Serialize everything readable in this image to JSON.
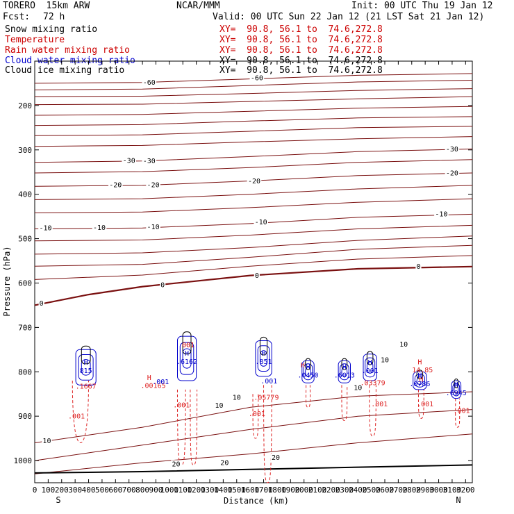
{
  "header": {
    "model": "TORERO  15km ARW",
    "center": "NCAR/MMM",
    "init": "Init: 00 UTC Thu 19 Jan 12",
    "fcst_label": "Fcst:",
    "fcst_value": "72 h",
    "valid": "Valid: 00 UTC Sun 22 Jan 12 (21 LST Sat 21 Jan 12)"
  },
  "fields": [
    {
      "name": "Snow mixing ratio",
      "xy": "XY=  90.8, 56.1 to  74.6,272.8",
      "color": "#000000",
      "xy_color": "#cc0000"
    },
    {
      "name": "Temperature",
      "xy": "XY=  90.8, 56.1 to  74.6,272.8",
      "color": "#cc0000",
      "xy_color": "#cc0000"
    },
    {
      "name": "Rain water mixing ratio",
      "xy": "XY=  90.8, 56.1 to  74.6,272.8",
      "color": "#cc0000",
      "xy_color": "#cc0000"
    },
    {
      "name": "Cloud water mixing ratio",
      "xy": "XY=  90.8, 56.1 to  74.6,272.8",
      "color": "#0000cc",
      "xy_color": "#000000"
    },
    {
      "name": "Cloud ice mixing ratio",
      "xy": "XY=  90.8, 56.1 to  74.6,272.8",
      "color": "#000000",
      "xy_color": "#000000"
    }
  ],
  "chart_data": {
    "type": "line",
    "xlabel": "Distance (km)",
    "ylabel": "Pressure (hPa)",
    "xlim": [
      0,
      3250
    ],
    "ylim": [
      1050,
      100
    ],
    "x_ticks": [
      0,
      100,
      200,
      300,
      400,
      500,
      600,
      700,
      800,
      900,
      1000,
      1100,
      1200,
      1300,
      1400,
      1500,
      1600,
      1700,
      1800,
      1900,
      2000,
      2100,
      2200,
      2300,
      2400,
      2500,
      2600,
      2700,
      2800,
      2900,
      3000,
      3100,
      3200
    ],
    "y_ticks": [
      200,
      300,
      400,
      500,
      600,
      700,
      800,
      900,
      1000
    ],
    "x_end_labels": {
      "left": "S",
      "right": "N"
    },
    "colors": {
      "isotherm": "#7a1010",
      "zero_isotherm": "#7a1010",
      "ground": "#000000",
      "rain": "#dd2222",
      "cloud_water": "#0000cc",
      "cloud_ice": "#000000"
    },
    "isotherms": [
      {
        "label": "-60",
        "points": [
          [
            0,
            150
          ],
          [
            800,
            148
          ],
          [
            1600,
            140
          ],
          [
            2400,
            132
          ],
          [
            3250,
            128
          ]
        ]
      },
      {
        "label": "",
        "points": [
          [
            0,
            165
          ],
          [
            800,
            163
          ],
          [
            1600,
            155
          ],
          [
            2400,
            147
          ],
          [
            3250,
            143
          ]
        ]
      },
      {
        "label": "",
        "points": [
          [
            0,
            180
          ],
          [
            800,
            179
          ],
          [
            1600,
            173
          ],
          [
            2400,
            166
          ],
          [
            3250,
            162
          ]
        ]
      },
      {
        "label": "",
        "points": [
          [
            0,
            198
          ],
          [
            800,
            197
          ],
          [
            1600,
            191
          ],
          [
            2400,
            185
          ],
          [
            3250,
            180
          ]
        ]
      },
      {
        "label": "",
        "points": [
          [
            0,
            222
          ],
          [
            800,
            220
          ],
          [
            1600,
            213
          ],
          [
            2400,
            206
          ],
          [
            3250,
            202
          ]
        ]
      },
      {
        "label": "",
        "points": [
          [
            0,
            245
          ],
          [
            800,
            243
          ],
          [
            1600,
            235
          ],
          [
            2400,
            228
          ],
          [
            3250,
            225
          ]
        ]
      },
      {
        "label": "",
        "points": [
          [
            0,
            268
          ],
          [
            800,
            266
          ],
          [
            1600,
            258
          ],
          [
            2400,
            250
          ],
          [
            3250,
            247
          ]
        ]
      },
      {
        "label": "",
        "points": [
          [
            0,
            292
          ],
          [
            800,
            290
          ],
          [
            1600,
            282
          ],
          [
            2400,
            275
          ],
          [
            3250,
            270
          ]
        ]
      },
      {
        "label": "-30",
        "points": [
          [
            0,
            328
          ],
          [
            800,
            325
          ],
          [
            1600,
            315
          ],
          [
            2400,
            304
          ],
          [
            3250,
            298
          ]
        ]
      },
      {
        "label": "",
        "points": [
          [
            0,
            352
          ],
          [
            800,
            349
          ],
          [
            1600,
            340
          ],
          [
            2400,
            328
          ],
          [
            3250,
            322
          ]
        ]
      },
      {
        "label": "-20",
        "points": [
          [
            0,
            382
          ],
          [
            800,
            380
          ],
          [
            1600,
            370
          ],
          [
            2400,
            358
          ],
          [
            3250,
            352
          ]
        ]
      },
      {
        "label": "",
        "points": [
          [
            0,
            412
          ],
          [
            800,
            410
          ],
          [
            1600,
            400
          ],
          [
            2400,
            388
          ],
          [
            3250,
            380
          ]
        ]
      },
      {
        "label": "",
        "points": [
          [
            0,
            442
          ],
          [
            800,
            440
          ],
          [
            1600,
            430
          ],
          [
            2400,
            418
          ],
          [
            3250,
            410
          ]
        ]
      },
      {
        "label": "-10",
        "points": [
          [
            0,
            478
          ],
          [
            800,
            476
          ],
          [
            1600,
            466
          ],
          [
            2400,
            452
          ],
          [
            3250,
            445
          ]
        ]
      },
      {
        "label": "",
        "points": [
          [
            0,
            505
          ],
          [
            800,
            503
          ],
          [
            1600,
            492
          ],
          [
            2400,
            478
          ],
          [
            3250,
            470
          ]
        ]
      },
      {
        "label": "",
        "points": [
          [
            0,
            535
          ],
          [
            800,
            532
          ],
          [
            1600,
            520
          ],
          [
            2400,
            504
          ],
          [
            3250,
            494
          ]
        ]
      },
      {
        "label": "",
        "points": [
          [
            0,
            562
          ],
          [
            800,
            558
          ],
          [
            1600,
            542
          ],
          [
            2400,
            524
          ],
          [
            3250,
            515
          ]
        ]
      },
      {
        "label": "",
        "points": [
          [
            0,
            592
          ],
          [
            800,
            582
          ],
          [
            1600,
            562
          ],
          [
            2400,
            546
          ],
          [
            3250,
            538
          ]
        ]
      },
      {
        "label": "0",
        "zero": true,
        "points": [
          [
            0,
            650
          ],
          [
            400,
            626
          ],
          [
            800,
            608
          ],
          [
            1600,
            583
          ],
          [
            2400,
            568
          ],
          [
            3250,
            563
          ]
        ]
      },
      {
        "label": "",
        "points": [
          [
            0,
            960
          ],
          [
            800,
            925
          ],
          [
            1600,
            880
          ],
          [
            2400,
            855
          ],
          [
            3250,
            845
          ]
        ]
      },
      {
        "label": "",
        "points": [
          [
            0,
            1000
          ],
          [
            800,
            965
          ],
          [
            1600,
            930
          ],
          [
            2400,
            900
          ],
          [
            3250,
            885
          ]
        ]
      },
      {
        "label": "",
        "points": [
          [
            0,
            1030
          ],
          [
            800,
            1005
          ],
          [
            1600,
            985
          ],
          [
            2400,
            960
          ],
          [
            3250,
            940
          ]
        ]
      }
    ],
    "ground": [
      [
        0,
        1028
      ],
      [
        800,
        1025
      ],
      [
        1600,
        1020
      ],
      [
        2400,
        1015
      ],
      [
        3250,
        1010
      ]
    ],
    "isotherm_labels": [
      {
        "text": "-60",
        "x": 850,
        "p": 150
      },
      {
        "text": "-60",
        "x": 1650,
        "p": 140
      },
      {
        "text": "-30",
        "x": 700,
        "p": 326
      },
      {
        "text": "-30",
        "x": 850,
        "p": 327
      },
      {
        "text": "-30",
        "x": 3100,
        "p": 300
      },
      {
        "text": "-20",
        "x": 600,
        "p": 381
      },
      {
        "text": "-20",
        "x": 880,
        "p": 381
      },
      {
        "text": "-20",
        "x": 1630,
        "p": 372
      },
      {
        "text": "-20",
        "x": 3100,
        "p": 354
      },
      {
        "text": "-10",
        "x": 80,
        "p": 478
      },
      {
        "text": "-10",
        "x": 480,
        "p": 477
      },
      {
        "text": "-10",
        "x": 880,
        "p": 476
      },
      {
        "text": "-10",
        "x": 1680,
        "p": 465
      },
      {
        "text": "-10",
        "x": 3020,
        "p": 447
      },
      {
        "text": "0",
        "x": 50,
        "p": 648
      },
      {
        "text": "0",
        "x": 950,
        "p": 606
      },
      {
        "text": "0",
        "x": 1650,
        "p": 585
      },
      {
        "text": "0",
        "x": 2850,
        "p": 565
      },
      {
        "text": "10",
        "x": 1370,
        "p": 878
      },
      {
        "text": "10",
        "x": 1500,
        "p": 860
      },
      {
        "text": "10",
        "x": 2400,
        "p": 838
      },
      {
        "text": "10",
        "x": 2600,
        "p": 775
      },
      {
        "text": "10",
        "x": 2740,
        "p": 740
      },
      {
        "text": "10",
        "x": 90,
        "p": 958
      },
      {
        "text": "20",
        "x": 1050,
        "p": 1010
      },
      {
        "text": "20",
        "x": 1410,
        "p": 1007
      },
      {
        "text": "20",
        "x": 1790,
        "p": 995
      }
    ],
    "cells": [
      {
        "x": 380,
        "p": 790,
        "w": 150,
        "h": 80,
        "high": "H",
        "value": "815",
        "value_color": "#0000cc"
      },
      {
        "x": 1130,
        "p": 770,
        "w": 140,
        "h": 100,
        "high": "H",
        "value": ".6162",
        "value_color": "#0000cc"
      },
      {
        "x": 1700,
        "p": 770,
        "w": 120,
        "h": 80,
        "high": "H",
        "value": ".851",
        "value_color": "#0000cc"
      },
      {
        "x": 2030,
        "p": 800,
        "w": 90,
        "h": 50,
        "high": "H",
        "value": ".0450",
        "value_color": "#0000cc"
      },
      {
        "x": 2300,
        "p": 800,
        "w": 90,
        "h": 50,
        "high": "H",
        "value": ".6013",
        "value_color": "#0000cc"
      },
      {
        "x": 2490,
        "p": 790,
        "w": 100,
        "h": 60,
        "high": "H",
        "value": ".001",
        "value_color": "#0000cc"
      },
      {
        "x": 2860,
        "p": 820,
        "w": 100,
        "h": 40,
        "high": "H",
        "value": ".0786",
        "value_color": "#0000cc"
      },
      {
        "x": 3130,
        "p": 840,
        "w": 70,
        "h": 40,
        "high": "H",
        "value": ".6945",
        "value_color": "#0000cc"
      }
    ],
    "rain_plumes": [
      {
        "x": 340,
        "p_top": 820,
        "p_bot": 960,
        "w": 120
      },
      {
        "x": 1090,
        "p_top": 840,
        "p_bot": 1010,
        "w": 60
      },
      {
        "x": 1180,
        "p_top": 840,
        "p_bot": 1010,
        "w": 50
      },
      {
        "x": 1640,
        "p_top": 850,
        "p_bot": 950,
        "w": 40
      },
      {
        "x": 1730,
        "p_top": 830,
        "p_bot": 1050,
        "w": 60
      },
      {
        "x": 2030,
        "p_top": 830,
        "p_bot": 880,
        "w": 30
      },
      {
        "x": 2300,
        "p_top": 830,
        "p_bot": 910,
        "w": 40
      },
      {
        "x": 2510,
        "p_top": 830,
        "p_bot": 945,
        "w": 50
      },
      {
        "x": 2870,
        "p_top": 840,
        "p_bot": 905,
        "w": 40
      },
      {
        "x": 3140,
        "p_top": 860,
        "p_bot": 925,
        "w": 30
      }
    ],
    "rain_labels": [
      {
        "text": ".001",
        "x": 310,
        "p": 905
      },
      {
        "text": ".001",
        "x": 1090,
        "p": 880
      },
      {
        "text": ".001",
        "x": 1650,
        "p": 900
      },
      {
        "text": ".001",
        "x": 2560,
        "p": 878
      },
      {
        "text": ".001",
        "x": 2900,
        "p": 878
      },
      {
        "text": ".001",
        "x": 3170,
        "p": 893
      },
      {
        "text": ".1667",
        "x": 380,
        "p": 838
      },
      {
        "text": "H",
        "x": 850,
        "p": 818
      },
      {
        "text": ".00165",
        "x": 880,
        "p": 836
      },
      {
        "text": ".05779",
        "x": 1720,
        "p": 863
      },
      {
        "text": "H",
        "x": 1990,
        "p": 790
      },
      {
        "text": ".03379",
        "x": 2510,
        "p": 830
      },
      {
        "text": "H",
        "x": 2860,
        "p": 783
      },
      {
        "text": "14.85",
        "x": 2880,
        "p": 801
      },
      {
        "text": "H",
        "x": 2870,
        "p": 822
      }
    ],
    "annotation_labels": [
      {
        "text": "001",
        "x": 1140,
        "p": 745,
        "color": "#cc0000"
      },
      {
        "text": ".001",
        "x": 935,
        "p": 828,
        "color": "#0000cc"
      },
      {
        "text": ".001",
        "x": 1740,
        "p": 826,
        "color": "#0000cc"
      }
    ]
  }
}
